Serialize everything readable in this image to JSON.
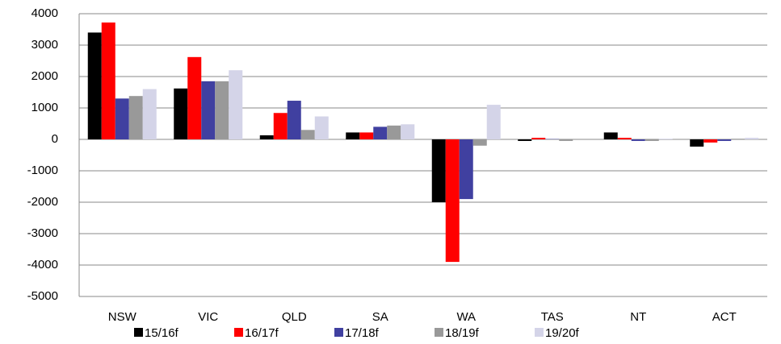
{
  "chart_data": {
    "type": "bar",
    "categories": [
      "NSW",
      "VIC",
      "QLD",
      "SA",
      "WA",
      "TAS",
      "NT",
      "ACT"
    ],
    "series": [
      {
        "name": "15/16f",
        "color": "#000000",
        "values": [
          3400,
          1620,
          130,
          220,
          -2000,
          -50,
          220,
          -230
        ]
      },
      {
        "name": "16/17f",
        "color": "#ff0000",
        "values": [
          3720,
          2620,
          840,
          220,
          -3900,
          50,
          50,
          -100
        ]
      },
      {
        "name": "17/18f",
        "color": "#4040a0",
        "values": [
          1300,
          1850,
          1230,
          400,
          -1900,
          10,
          -50,
          -50
        ]
      },
      {
        "name": "18/19f",
        "color": "#999999",
        "values": [
          1380,
          1850,
          300,
          440,
          -200,
          -50,
          -50,
          20
        ]
      },
      {
        "name": "19/20f",
        "color": "#d4d4e8",
        "values": [
          1600,
          2200,
          730,
          480,
          1100,
          0,
          20,
          50
        ]
      }
    ],
    "ylim": [
      -5000,
      4000
    ],
    "yticks": [
      -5000,
      -4000,
      -3000,
      -2000,
      -1000,
      0,
      1000,
      2000,
      3000,
      4000
    ],
    "grid": true
  }
}
